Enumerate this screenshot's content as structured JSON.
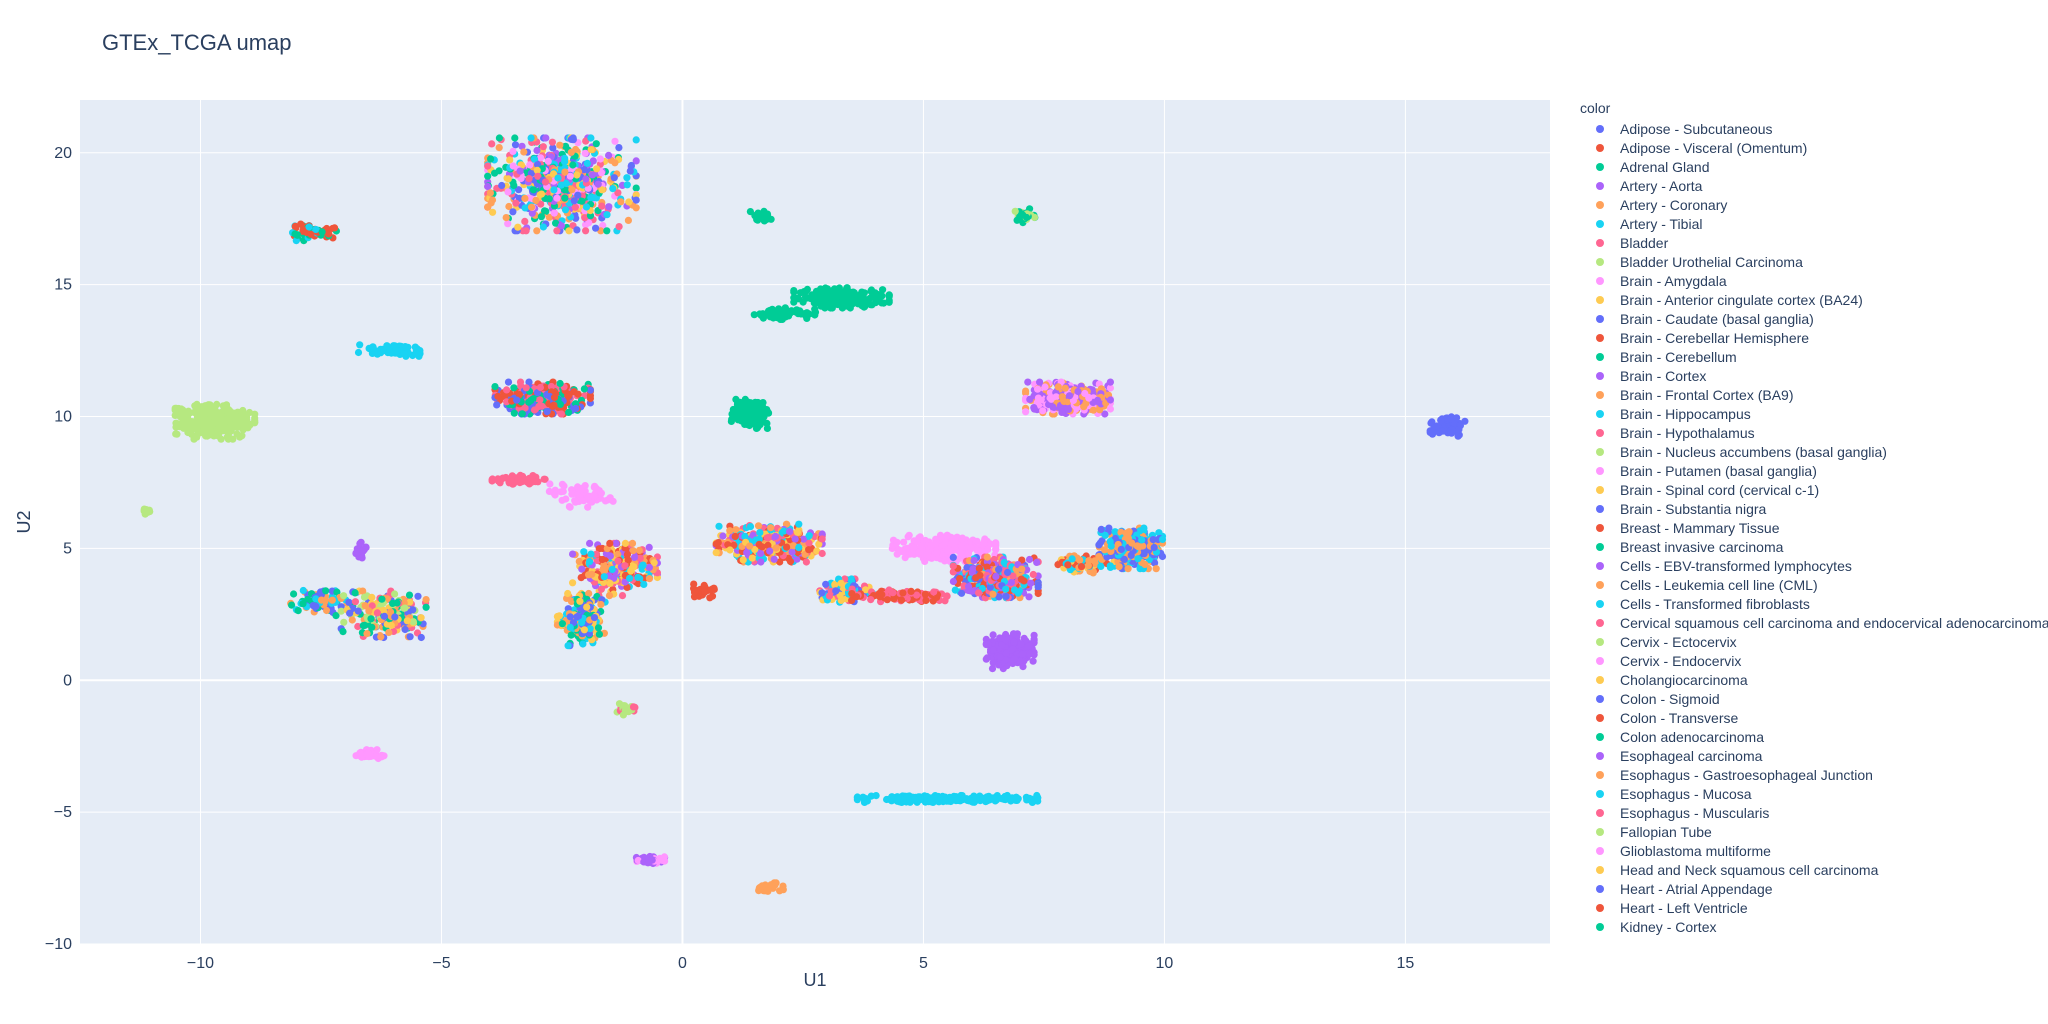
{
  "chart_data": {
    "type": "scatter",
    "title": "GTEx_TCGA umap",
    "xlabel": "U1",
    "ylabel": "U2",
    "xlim": [
      -12.5,
      18
    ],
    "ylim": [
      -10,
      22
    ],
    "xticks": [
      -10,
      -5,
      0,
      5,
      10,
      15
    ],
    "xtick_labels": [
      "−10",
      "−5",
      "0",
      "5",
      "10",
      "15"
    ],
    "yticks": [
      -10,
      -5,
      0,
      5,
      10,
      15,
      20
    ],
    "ytick_labels": [
      "−10",
      "−5",
      "0",
      "5",
      "10",
      "15",
      "20"
    ],
    "grid": true,
    "plot_bgcolor": "#E5ECF6",
    "legend_title": "color",
    "legend_placement": "right",
    "legend": [
      {
        "name": "Adipose - Subcutaneous",
        "color": "#636EFA"
      },
      {
        "name": "Adipose - Visceral (Omentum)",
        "color": "#EF553B"
      },
      {
        "name": "Adrenal Gland",
        "color": "#00CC96"
      },
      {
        "name": "Artery - Aorta",
        "color": "#AB63FA"
      },
      {
        "name": "Artery - Coronary",
        "color": "#FFA15A"
      },
      {
        "name": "Artery - Tibial",
        "color": "#19D3F3"
      },
      {
        "name": "Bladder",
        "color": "#FF6692"
      },
      {
        "name": "Bladder Urothelial Carcinoma",
        "color": "#B6E880"
      },
      {
        "name": "Brain - Amygdala",
        "color": "#FF97FF"
      },
      {
        "name": "Brain - Anterior cingulate cortex (BA24)",
        "color": "#FECB52"
      },
      {
        "name": "Brain - Caudate (basal ganglia)",
        "color": "#636EFA"
      },
      {
        "name": "Brain - Cerebellar Hemisphere",
        "color": "#EF553B"
      },
      {
        "name": "Brain - Cerebellum",
        "color": "#00CC96"
      },
      {
        "name": "Brain - Cortex",
        "color": "#AB63FA"
      },
      {
        "name": "Brain - Frontal Cortex (BA9)",
        "color": "#FFA15A"
      },
      {
        "name": "Brain - Hippocampus",
        "color": "#19D3F3"
      },
      {
        "name": "Brain - Hypothalamus",
        "color": "#FF6692"
      },
      {
        "name": "Brain - Nucleus accumbens (basal ganglia)",
        "color": "#B6E880"
      },
      {
        "name": "Brain - Putamen (basal ganglia)",
        "color": "#FF97FF"
      },
      {
        "name": "Brain - Spinal cord (cervical c-1)",
        "color": "#FECB52"
      },
      {
        "name": "Brain - Substantia nigra",
        "color": "#636EFA"
      },
      {
        "name": "Breast - Mammary Tissue",
        "color": "#EF553B"
      },
      {
        "name": "Breast invasive carcinoma",
        "color": "#00CC96"
      },
      {
        "name": "Cells - EBV-transformed lymphocytes",
        "color": "#AB63FA"
      },
      {
        "name": "Cells - Leukemia cell line (CML)",
        "color": "#FFA15A"
      },
      {
        "name": "Cells - Transformed fibroblasts",
        "color": "#19D3F3"
      },
      {
        "name": "Cervical squamous cell carcinoma and endocervical adenocarcinoma",
        "color": "#FF6692"
      },
      {
        "name": "Cervix - Ectocervix",
        "color": "#B6E880"
      },
      {
        "name": "Cervix - Endocervix",
        "color": "#FF97FF"
      },
      {
        "name": "Cholangiocarcinoma",
        "color": "#FECB52"
      },
      {
        "name": "Colon - Sigmoid",
        "color": "#636EFA"
      },
      {
        "name": "Colon - Transverse",
        "color": "#EF553B"
      },
      {
        "name": "Colon adenocarcinoma",
        "color": "#00CC96"
      },
      {
        "name": "Esophageal carcinoma",
        "color": "#AB63FA"
      },
      {
        "name": "Esophagus - Gastroesophageal Junction",
        "color": "#FFA15A"
      },
      {
        "name": "Esophagus - Mucosa",
        "color": "#19D3F3"
      },
      {
        "name": "Esophagus - Muscularis",
        "color": "#FF6692"
      },
      {
        "name": "Fallopian Tube",
        "color": "#B6E880"
      },
      {
        "name": "Glioblastoma multiforme",
        "color": "#FF97FF"
      },
      {
        "name": "Head and Neck squamous cell carcinoma",
        "color": "#FECB52"
      },
      {
        "name": "Heart - Atrial Appendage",
        "color": "#636EFA"
      },
      {
        "name": "Heart - Left Ventricle",
        "color": "#EF553B"
      },
      {
        "name": "Kidney - Cortex",
        "color": "#00CC96"
      }
    ],
    "clusters": [
      {
        "cx": -2.5,
        "cy": 18.8,
        "rx": 1.4,
        "ry": 1.6,
        "n": 650,
        "colors": [
          "#636EFA",
          "#AB63FA",
          "#FF97FF",
          "#FFA15A",
          "#19D3F3",
          "#FECB52",
          "#FF6692",
          "#00CC96"
        ]
      },
      {
        "cx": -7.7,
        "cy": 17.0,
        "rx": 0.5,
        "ry": 0.3,
        "n": 60,
        "colors": [
          "#00CC96",
          "#19D3F3",
          "#EF553B"
        ]
      },
      {
        "cx": -6.0,
        "cy": 12.5,
        "rx": 0.7,
        "ry": 0.2,
        "n": 80,
        "colors": [
          "#19D3F3"
        ]
      },
      {
        "cx": -9.7,
        "cy": 9.8,
        "rx": 0.75,
        "ry": 0.6,
        "n": 300,
        "colors": [
          "#B6E880"
        ]
      },
      {
        "cx": -11.1,
        "cy": 6.4,
        "rx": 0.12,
        "ry": 0.1,
        "n": 15,
        "colors": [
          "#B6E880"
        ]
      },
      {
        "cx": -2.9,
        "cy": 10.7,
        "rx": 0.9,
        "ry": 0.55,
        "n": 320,
        "colors": [
          "#EF553B",
          "#636EFA",
          "#00CC96",
          "#FF6692"
        ]
      },
      {
        "cx": -3.4,
        "cy": 7.6,
        "rx": 0.5,
        "ry": 0.15,
        "n": 60,
        "colors": [
          "#FF6692"
        ]
      },
      {
        "cx": -2.1,
        "cy": 7.0,
        "rx": 0.6,
        "ry": 0.4,
        "n": 60,
        "colors": [
          "#FF97FF"
        ]
      },
      {
        "cx": -1.4,
        "cy": 4.2,
        "rx": 0.8,
        "ry": 0.9,
        "n": 260,
        "colors": [
          "#FF6692",
          "#EF553B",
          "#19D3F3",
          "#FFA15A",
          "#FECB52",
          "#AB63FA"
        ]
      },
      {
        "cx": -2.1,
        "cy": 2.3,
        "rx": 0.45,
        "ry": 0.9,
        "n": 200,
        "colors": [
          "#19D3F3",
          "#636EFA",
          "#FECB52",
          "#FFA15A",
          "#00CC96"
        ]
      },
      {
        "cx": -6.7,
        "cy": 4.9,
        "rx": 0.15,
        "ry": 0.3,
        "n": 20,
        "colors": [
          "#AB63FA"
        ]
      },
      {
        "cx": -7.5,
        "cy": 3.0,
        "rx": 0.6,
        "ry": 0.5,
        "n": 70,
        "colors": [
          "#19D3F3",
          "#FFA15A",
          "#00CC96",
          "#636EFA"
        ]
      },
      {
        "cx": -6.2,
        "cy": 2.5,
        "rx": 0.8,
        "ry": 0.8,
        "n": 200,
        "colors": [
          "#FFA15A",
          "#636EFA",
          "#00CC96",
          "#B6E880",
          "#FECB52",
          "#FF6692"
        ]
      },
      {
        "cx": 0.4,
        "cy": 3.4,
        "rx": 0.3,
        "ry": 0.25,
        "n": 30,
        "colors": [
          "#EF553B"
        ]
      },
      {
        "cx": 1.6,
        "cy": 17.6,
        "rx": 0.25,
        "ry": 0.2,
        "n": 20,
        "colors": [
          "#00CC96"
        ]
      },
      {
        "cx": 3.3,
        "cy": 14.5,
        "rx": 0.9,
        "ry": 0.35,
        "n": 220,
        "colors": [
          "#00CC96"
        ]
      },
      {
        "cx": 2.1,
        "cy": 13.9,
        "rx": 0.6,
        "ry": 0.2,
        "n": 60,
        "colors": [
          "#00CC96"
        ]
      },
      {
        "cx": 1.4,
        "cy": 10.1,
        "rx": 0.35,
        "ry": 0.5,
        "n": 160,
        "colors": [
          "#00CC96"
        ]
      },
      {
        "cx": 7.1,
        "cy": 17.6,
        "rx": 0.2,
        "ry": 0.25,
        "n": 25,
        "colors": [
          "#00CC96",
          "#B6E880"
        ]
      },
      {
        "cx": 8.0,
        "cy": 10.7,
        "rx": 0.8,
        "ry": 0.55,
        "n": 380,
        "colors": [
          "#FFA15A",
          "#AB63FA",
          "#FF97FF"
        ]
      },
      {
        "cx": 15.9,
        "cy": 9.6,
        "rx": 0.35,
        "ry": 0.35,
        "n": 70,
        "colors": [
          "#636EFA"
        ]
      },
      {
        "cx": 1.8,
        "cy": 5.2,
        "rx": 1.0,
        "ry": 0.65,
        "n": 400,
        "colors": [
          "#FF6692",
          "#EF553B",
          "#FFA15A",
          "#FECB52",
          "#AB63FA",
          "#19D3F3"
        ]
      },
      {
        "cx": 3.4,
        "cy": 3.4,
        "rx": 0.5,
        "ry": 0.4,
        "n": 120,
        "colors": [
          "#19D3F3",
          "#FECB52",
          "#FF6692",
          "#636EFA"
        ]
      },
      {
        "cx": 4.5,
        "cy": 3.2,
        "rx": 0.9,
        "ry": 0.2,
        "n": 120,
        "colors": [
          "#EF553B",
          "#FF6692"
        ]
      },
      {
        "cx": 5.4,
        "cy": 5.0,
        "rx": 1.0,
        "ry": 0.45,
        "n": 260,
        "colors": [
          "#FF97FF"
        ]
      },
      {
        "cx": 6.5,
        "cy": 3.9,
        "rx": 0.8,
        "ry": 0.7,
        "n": 450,
        "colors": [
          "#EF553B",
          "#FFA15A",
          "#636EFA",
          "#FF6692",
          "#AB63FA",
          "#19D3F3"
        ]
      },
      {
        "cx": 8.3,
        "cy": 4.4,
        "rx": 0.6,
        "ry": 0.3,
        "n": 100,
        "colors": [
          "#FFA15A",
          "#19D3F3",
          "#FECB52",
          "#EF553B"
        ]
      },
      {
        "cx": 9.3,
        "cy": 5.0,
        "rx": 0.6,
        "ry": 0.7,
        "n": 300,
        "colors": [
          "#19D3F3",
          "#FFA15A",
          "#636EFA"
        ]
      },
      {
        "cx": 6.8,
        "cy": 1.1,
        "rx": 0.45,
        "ry": 0.6,
        "n": 220,
        "colors": [
          "#AB63FA"
        ]
      },
      {
        "cx": -1.2,
        "cy": -1.1,
        "rx": 0.25,
        "ry": 0.2,
        "n": 25,
        "colors": [
          "#B6E880",
          "#FF6692"
        ]
      },
      {
        "cx": -6.5,
        "cy": -2.8,
        "rx": 0.35,
        "ry": 0.15,
        "n": 35,
        "colors": [
          "#FF97FF"
        ]
      },
      {
        "cx": 5.5,
        "cy": -4.5,
        "rx": 1.7,
        "ry": 0.12,
        "n": 260,
        "colors": [
          "#19D3F3"
        ]
      },
      {
        "cx": -0.7,
        "cy": -6.8,
        "rx": 0.3,
        "ry": 0.2,
        "n": 40,
        "colors": [
          "#AB63FA",
          "#FF97FF"
        ]
      },
      {
        "cx": 1.8,
        "cy": -7.9,
        "rx": 0.3,
        "ry": 0.2,
        "n": 30,
        "colors": [
          "#FFA15A"
        ]
      }
    ]
  }
}
